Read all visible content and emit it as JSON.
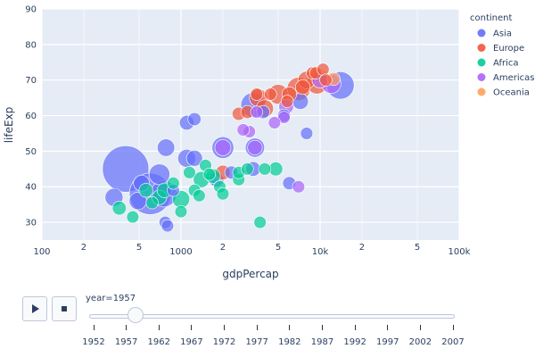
{
  "chart_data": {
    "type": "scatter",
    "xlabel": "gdpPercap",
    "ylabel": "lifeExp",
    "xscale": "log",
    "xlim": [
      100,
      100000
    ],
    "ylim": [
      25,
      90
    ],
    "x_tick_labels": [
      {
        "value": 100,
        "label": "100"
      },
      {
        "value": 200,
        "label": "2"
      },
      {
        "value": 500,
        "label": "5"
      },
      {
        "value": 1000,
        "label": "1000"
      },
      {
        "value": 2000,
        "label": "2"
      },
      {
        "value": 5000,
        "label": "5"
      },
      {
        "value": 10000,
        "label": "10k"
      },
      {
        "value": 20000,
        "label": "2"
      },
      {
        "value": 50000,
        "label": "5"
      },
      {
        "value": 100000,
        "label": "100k"
      }
    ],
    "y_ticks": [
      30,
      40,
      50,
      60,
      70,
      80,
      90
    ],
    "legend_title": "continent",
    "legend_position": "right",
    "series": [
      {
        "name": "Asia",
        "color": "#636efa",
        "points": [
          {
            "x": 400,
            "y": 45,
            "size": 1.0
          },
          {
            "x": 600,
            "y": 38,
            "size": 0.8
          },
          {
            "x": 750,
            "y": 38,
            "size": 0.32
          },
          {
            "x": 700,
            "y": 43.5,
            "size": 0.2
          },
          {
            "x": 520,
            "y": 41,
            "size": 0.12
          },
          {
            "x": 330,
            "y": 37,
            "size": 0.15
          },
          {
            "x": 490,
            "y": 36,
            "size": 0.14
          },
          {
            "x": 780,
            "y": 51,
            "size": 0.14
          },
          {
            "x": 1100,
            "y": 48,
            "size": 0.15
          },
          {
            "x": 1250,
            "y": 48,
            "size": 0.12
          },
          {
            "x": 1100,
            "y": 58,
            "size": 0.1
          },
          {
            "x": 1250,
            "y": 59,
            "size": 0.08
          },
          {
            "x": 1800,
            "y": 42,
            "size": 0.1
          },
          {
            "x": 2000,
            "y": 51,
            "size": 0.22
          },
          {
            "x": 3300,
            "y": 63,
            "size": 0.28
          },
          {
            "x": 3400,
            "y": 51,
            "size": 0.17
          },
          {
            "x": 3300,
            "y": 45,
            "size": 0.1
          },
          {
            "x": 2300,
            "y": 44,
            "size": 0.08
          },
          {
            "x": 6000,
            "y": 41,
            "size": 0.08
          },
          {
            "x": 7200,
            "y": 64,
            "size": 0.12
          },
          {
            "x": 5500,
            "y": 60,
            "size": 0.08
          },
          {
            "x": 3900,
            "y": 61,
            "size": 0.08
          },
          {
            "x": 14000,
            "y": 68.5,
            "size": 0.35
          },
          {
            "x": 770,
            "y": 30,
            "size": 0.07
          },
          {
            "x": 880,
            "y": 39,
            "size": 0.07
          },
          {
            "x": 800,
            "y": 29,
            "size": 0.07
          },
          {
            "x": 8000,
            "y": 55,
            "size": 0.07
          }
        ]
      },
      {
        "name": "Europe",
        "color": "#ef553b",
        "points": [
          {
            "x": 7000,
            "y": 67.5,
            "size": 0.25
          },
          {
            "x": 9500,
            "y": 69,
            "size": 0.2
          },
          {
            "x": 5000,
            "y": 66,
            "size": 0.18
          },
          {
            "x": 3600,
            "y": 65,
            "size": 0.15
          },
          {
            "x": 4000,
            "y": 62,
            "size": 0.14
          },
          {
            "x": 8000,
            "y": 70,
            "size": 0.14
          },
          {
            "x": 7500,
            "y": 68,
            "size": 0.1
          },
          {
            "x": 6000,
            "y": 66,
            "size": 0.1
          },
          {
            "x": 2600,
            "y": 60.5,
            "size": 0.08
          },
          {
            "x": 2000,
            "y": 44,
            "size": 0.1
          },
          {
            "x": 3000,
            "y": 61,
            "size": 0.08
          },
          {
            "x": 4400,
            "y": 66,
            "size": 0.07
          },
          {
            "x": 8800,
            "y": 72,
            "size": 0.07
          },
          {
            "x": 9300,
            "y": 72,
            "size": 0.07
          },
          {
            "x": 10500,
            "y": 73,
            "size": 0.07
          },
          {
            "x": 3500,
            "y": 66,
            "size": 0.07
          },
          {
            "x": 5800,
            "y": 64,
            "size": 0.07
          },
          {
            "x": 11000,
            "y": 70,
            "size": 0.07
          }
        ]
      },
      {
        "name": "Africa",
        "color": "#00cc96",
        "points": [
          {
            "x": 1000,
            "y": 36.5,
            "size": 0.14
          },
          {
            "x": 1400,
            "y": 42,
            "size": 0.12
          },
          {
            "x": 1700,
            "y": 43,
            "size": 0.1
          },
          {
            "x": 700,
            "y": 37,
            "size": 0.1
          },
          {
            "x": 760,
            "y": 39,
            "size": 0.1
          },
          {
            "x": 360,
            "y": 34,
            "size": 0.09
          },
          {
            "x": 560,
            "y": 39,
            "size": 0.09
          },
          {
            "x": 4800,
            "y": 45,
            "size": 0.09
          },
          {
            "x": 4000,
            "y": 45,
            "size": 0.07
          },
          {
            "x": 2600,
            "y": 42,
            "size": 0.07
          },
          {
            "x": 2600,
            "y": 44,
            "size": 0.07
          },
          {
            "x": 1900,
            "y": 40,
            "size": 0.07
          },
          {
            "x": 1500,
            "y": 46,
            "size": 0.07
          },
          {
            "x": 1250,
            "y": 39,
            "size": 0.07
          },
          {
            "x": 880,
            "y": 41,
            "size": 0.07
          },
          {
            "x": 1150,
            "y": 44,
            "size": 0.07
          },
          {
            "x": 1350,
            "y": 37.5,
            "size": 0.07
          },
          {
            "x": 450,
            "y": 31.5,
            "size": 0.07
          },
          {
            "x": 1000,
            "y": 33,
            "size": 0.07
          },
          {
            "x": 3700,
            "y": 30,
            "size": 0.07
          },
          {
            "x": 620,
            "y": 35.5,
            "size": 0.07
          },
          {
            "x": 1600,
            "y": 43.5,
            "size": 0.07
          },
          {
            "x": 3000,
            "y": 45,
            "size": 0.07
          },
          {
            "x": 2000,
            "y": 38,
            "size": 0.07
          }
        ]
      },
      {
        "name": "Americas",
        "color": "#ab63fa",
        "points": [
          {
            "x": 12000,
            "y": 69,
            "size": 0.18
          },
          {
            "x": 10000,
            "y": 70,
            "size": 0.12
          },
          {
            "x": 5700,
            "y": 62.5,
            "size": 0.1
          },
          {
            "x": 3400,
            "y": 51,
            "size": 0.1
          },
          {
            "x": 2000,
            "y": 51,
            "size": 0.12
          },
          {
            "x": 5500,
            "y": 59.5,
            "size": 0.07
          },
          {
            "x": 3500,
            "y": 61,
            "size": 0.07
          },
          {
            "x": 7000,
            "y": 40,
            "size": 0.07
          },
          {
            "x": 4700,
            "y": 58,
            "size": 0.07
          },
          {
            "x": 3100,
            "y": 55.5,
            "size": 0.07
          },
          {
            "x": 2800,
            "y": 56,
            "size": 0.07
          }
        ]
      },
      {
        "name": "Oceania",
        "color": "#ffa15a",
        "points": [
          {
            "x": 10000,
            "y": 70.5,
            "size": 0.16
          },
          {
            "x": 12500,
            "y": 70.3,
            "size": 0.08
          }
        ]
      }
    ]
  },
  "controls": {
    "play_label": "Play",
    "stop_label": "Stop",
    "current_year_label": "year=1957",
    "current_year": 1957,
    "years": [
      "1952",
      "1957",
      "1962",
      "1967",
      "1972",
      "1977",
      "1982",
      "1987",
      "1992",
      "1997",
      "2002",
      "2007"
    ]
  }
}
